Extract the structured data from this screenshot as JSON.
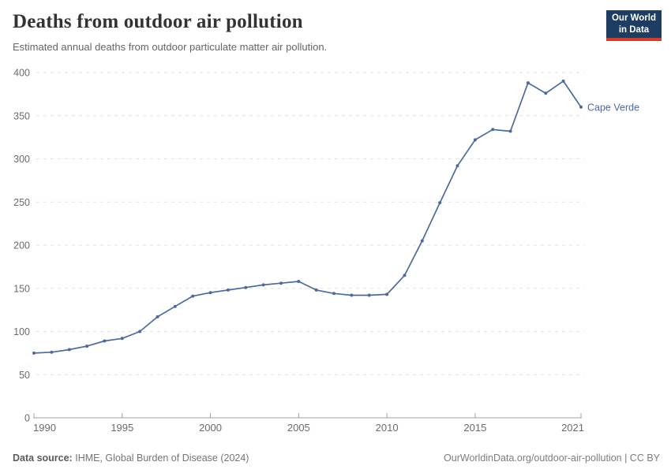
{
  "header": {
    "title": "Deaths from outdoor air pollution",
    "subtitle": "Estimated annual deaths from outdoor particulate matter air pollution.",
    "logo": {
      "line1": "Our World",
      "line2": "in Data",
      "bg_color": "#1d3d63",
      "accent_color": "#d93a2b"
    }
  },
  "chart_data": {
    "type": "line",
    "title": "Deaths from outdoor air pollution",
    "xlabel": "",
    "ylabel": "",
    "xlim": [
      1990,
      2021
    ],
    "ylim": [
      0,
      400
    ],
    "grid": "horizontal dashed",
    "legend_position": "end-of-line label",
    "x_ticks": [
      1990,
      1995,
      2000,
      2005,
      2010,
      2015,
      2021
    ],
    "y_ticks": [
      0,
      50,
      100,
      150,
      200,
      250,
      300,
      350,
      400
    ],
    "colors": {
      "line": "#4c6a9c",
      "grid": "#e2e2e2",
      "axis": "#a3a3a3",
      "tick_text": "#6b6b6b"
    },
    "series": [
      {
        "name": "Cape Verde",
        "color": "#4c6a9c",
        "x": [
          1990,
          1991,
          1992,
          1993,
          1994,
          1995,
          1996,
          1997,
          1998,
          1999,
          2000,
          2001,
          2002,
          2003,
          2004,
          2005,
          2006,
          2007,
          2008,
          2009,
          2010,
          2011,
          2012,
          2013,
          2014,
          2015,
          2016,
          2017,
          2018,
          2019,
          2020,
          2021
        ],
        "values": [
          75,
          76,
          79,
          83,
          89,
          92,
          100,
          117,
          129,
          141,
          145,
          148,
          151,
          154,
          156,
          158,
          148,
          144,
          142,
          142,
          143,
          165,
          205,
          249,
          292,
          322,
          334,
          332,
          388,
          376,
          390,
          360
        ]
      }
    ],
    "end_label": "Cape Verde"
  },
  "footer": {
    "source_label": "Data source:",
    "source_value": "IHME, Global Burden of Disease (2024)",
    "right_text": "OurWorldinData.org/outdoor-air-pollution | CC BY"
  }
}
